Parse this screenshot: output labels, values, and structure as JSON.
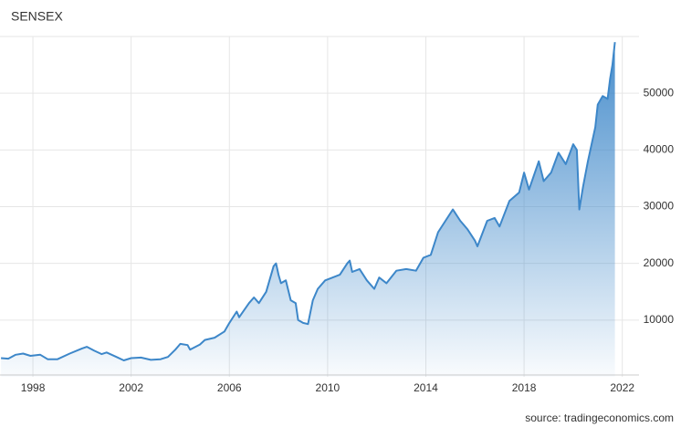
{
  "chart_data": {
    "type": "area",
    "title": "SENSEX",
    "source": "source: tradingeconomics.com",
    "color": "#3d87c9",
    "x": [
      1996.7,
      1997.0,
      1997.3,
      1997.6,
      1997.9,
      1998.3,
      1998.6,
      1999.0,
      1999.5,
      2000.0,
      2000.2,
      2000.5,
      2000.8,
      2001.0,
      2001.4,
      2001.7,
      2002.0,
      2002.4,
      2002.8,
      2003.2,
      2003.5,
      2003.8,
      2004.0,
      2004.3,
      2004.4,
      2004.8,
      2005.0,
      2005.4,
      2005.8,
      2006.0,
      2006.3,
      2006.4,
      2006.8,
      2007.0,
      2007.2,
      2007.5,
      2007.8,
      2007.9,
      2008.0,
      2008.1,
      2008.3,
      2008.5,
      2008.7,
      2008.8,
      2009.0,
      2009.2,
      2009.4,
      2009.6,
      2009.9,
      2010.2,
      2010.5,
      2010.8,
      2010.9,
      2011.0,
      2011.3,
      2011.6,
      2011.9,
      2012.1,
      2012.4,
      2012.8,
      2013.2,
      2013.6,
      2013.9,
      2014.2,
      2014.5,
      2014.8,
      2015.1,
      2015.4,
      2015.7,
      2016.0,
      2016.1,
      2016.5,
      2016.8,
      2017.0,
      2017.4,
      2017.8,
      2018.0,
      2018.2,
      2018.6,
      2018.8,
      2019.1,
      2019.4,
      2019.7,
      2020.0,
      2020.15,
      2020.25,
      2020.4,
      2020.6,
      2020.9,
      2021.0,
      2021.2,
      2021.4,
      2021.5,
      2021.6,
      2021.7
    ],
    "values": [
      3300,
      3200,
      3900,
      4100,
      3700,
      3900,
      3100,
      3100,
      4100,
      5000,
      5300,
      4600,
      4000,
      4300,
      3500,
      2900,
      3300,
      3400,
      3000,
      3100,
      3500,
      4800,
      5800,
      5600,
      4800,
      5700,
      6500,
      6900,
      8000,
      9500,
      11500,
      10500,
      13000,
      14000,
      13000,
      15000,
      19500,
      20000,
      18000,
      16500,
      17000,
      13500,
      13000,
      10000,
      9500,
      9300,
      13500,
      15500,
      17000,
      17500,
      18000,
      20000,
      20500,
      18500,
      19000,
      17000,
      15500,
      17500,
      16500,
      18700,
      19000,
      18700,
      21000,
      21500,
      25500,
      27500,
      29500,
      27500,
      26000,
      24000,
      23000,
      27500,
      28000,
      26500,
      31000,
      32500,
      36000,
      33000,
      38000,
      34500,
      36000,
      39500,
      37500,
      41000,
      40000,
      29500,
      33500,
      38000,
      44000,
      48000,
      49500,
      49000,
      52500,
      55000,
      59000
    ],
    "xlim": [
      1996.66,
      2022.68
    ],
    "xticks": [
      1998,
      2002,
      2006,
      2010,
      2014,
      2018,
      2022
    ],
    "ylim": [
      0,
      60000
    ],
    "yticks": [
      10000,
      20000,
      30000,
      40000,
      50000
    ],
    "grid": true
  }
}
